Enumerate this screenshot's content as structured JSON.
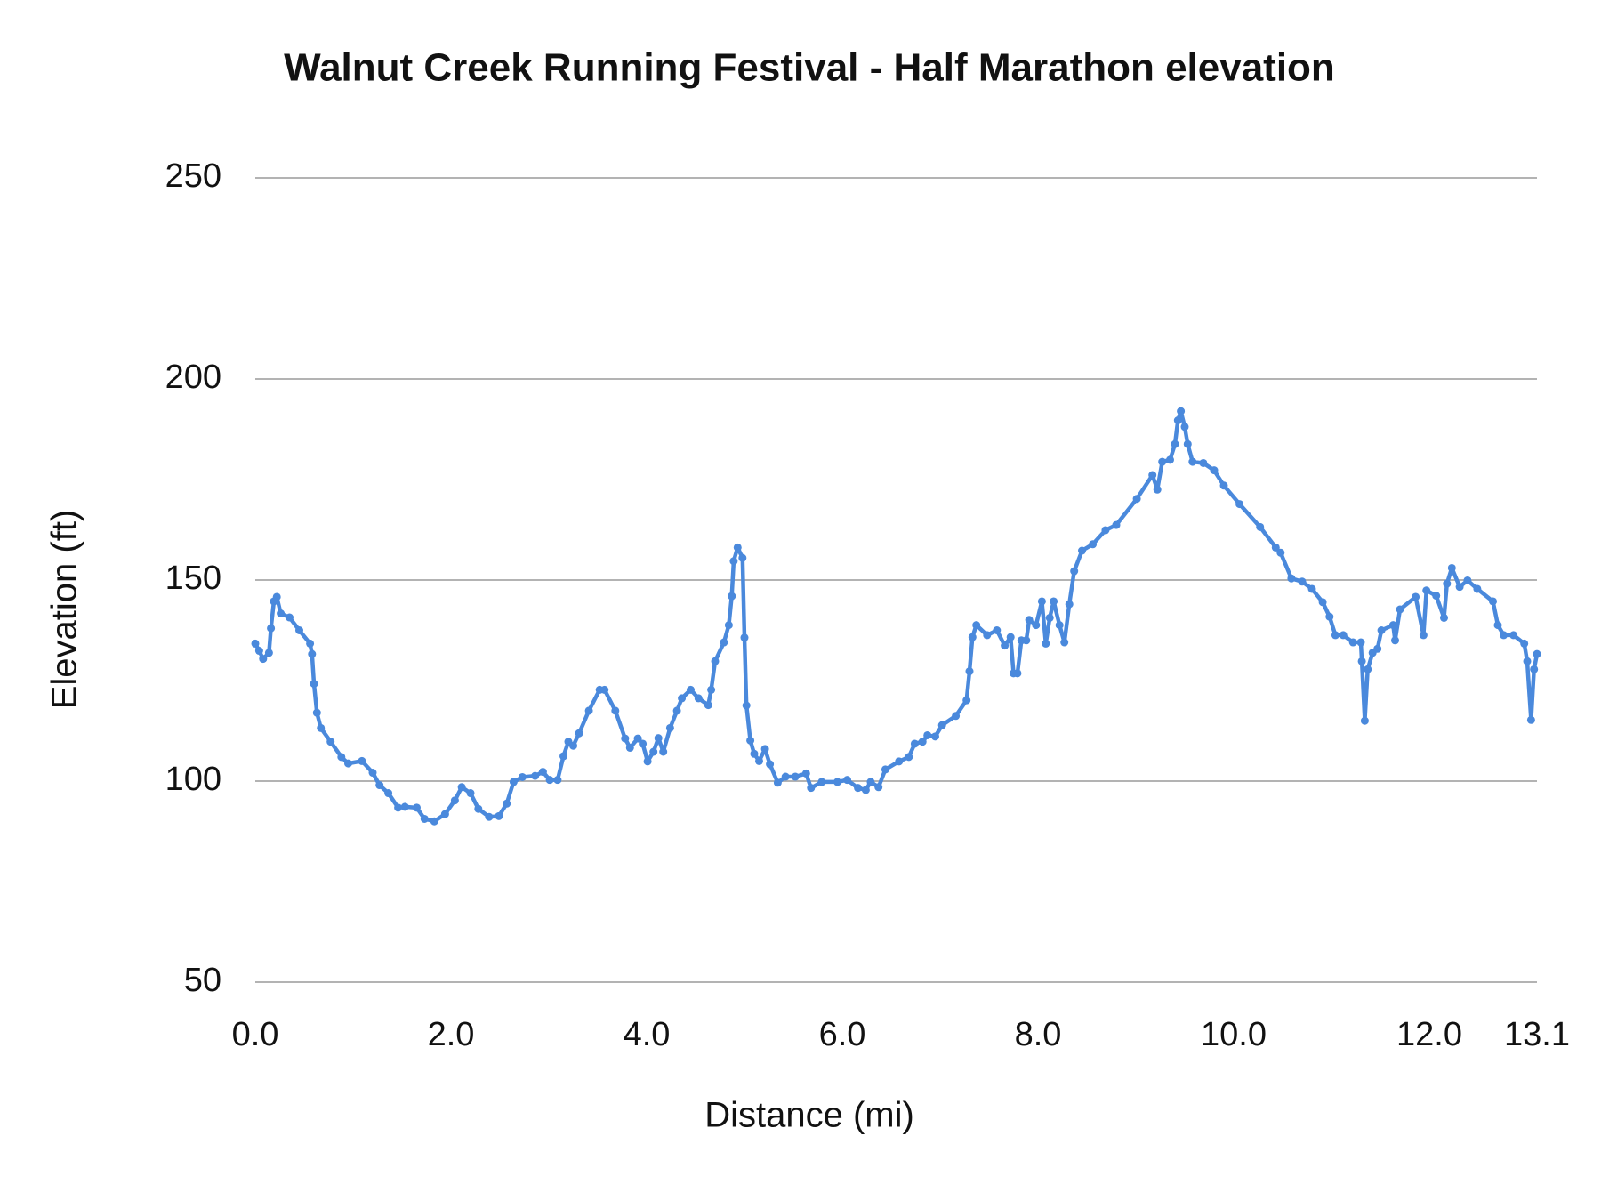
{
  "chart_data": {
    "type": "line",
    "title": "Walnut Creek Running Festival - Half Marathon elevation",
    "x_label": "Distance (mi)",
    "y_label": "Elevation (ft)",
    "xlim": [
      0,
      13.1
    ],
    "ylim": [
      50,
      250
    ],
    "xticks": [
      {
        "value": 0,
        "label": "0.0"
      },
      {
        "value": 2,
        "label": "2.0"
      },
      {
        "value": 4,
        "label": "4.0"
      },
      {
        "value": 6,
        "label": "6.0"
      },
      {
        "value": 8,
        "label": "8.0"
      },
      {
        "value": 10,
        "label": "10.0"
      },
      {
        "value": 12,
        "label": "12.0"
      },
      13.1
    ],
    "yticks": [
      50,
      100,
      150,
      200,
      250
    ],
    "grid": true,
    "markers": true,
    "x": [
      0,
      0.04,
      0.08,
      0.14,
      0.16,
      0.19,
      0.22,
      0.26,
      0.35,
      0.45,
      0.56,
      0.58,
      0.6,
      0.63,
      0.67,
      0.77,
      0.88,
      0.95,
      1.09,
      1.2,
      1.27,
      1.36,
      1.46,
      1.53,
      1.65,
      1.73,
      1.83,
      1.94,
      2.04,
      2.11,
      2.2,
      2.28,
      2.39,
      2.49,
      2.57,
      2.64,
      2.73,
      2.86,
      2.94,
      3.01,
      3.09,
      3.15,
      3.2,
      3.25,
      3.31,
      3.41,
      3.52,
      3.57,
      3.68,
      3.78,
      3.83,
      3.91,
      3.96,
      4.01,
      4.07,
      4.12,
      4.17,
      4.24,
      4.31,
      4.36,
      4.45,
      4.53,
      4.63,
      4.66,
      4.7,
      4.79,
      4.84,
      4.87,
      4.89,
      4.93,
      4.98,
      5,
      5.02,
      5.06,
      5.1,
      5.15,
      5.21,
      5.26,
      5.34,
      5.42,
      5.52,
      5.63,
      5.68,
      5.79,
      5.95,
      6.05,
      6.16,
      6.24,
      6.29,
      6.37,
      6.44,
      6.58,
      6.68,
      6.74,
      6.82,
      6.87,
      6.95,
      7.02,
      7.16,
      7.27,
      7.3,
      7.33,
      7.37,
      7.48,
      7.58,
      7.66,
      7.72,
      7.75,
      7.79,
      7.83,
      7.88,
      7.91,
      7.98,
      8.04,
      8.08,
      8.12,
      8.16,
      8.22,
      8.27,
      8.32,
      8.37,
      8.45,
      8.56,
      8.69,
      8.8,
      9.01,
      9.17,
      9.22,
      9.27,
      9.35,
      9.4,
      9.43,
      9.46,
      9.5,
      9.53,
      9.58,
      9.69,
      9.8,
      9.9,
      10.06,
      10.27,
      10.43,
      10.48,
      10.59,
      10.7,
      10.8,
      10.91,
      10.98,
      11.04,
      11.12,
      11.22,
      11.3,
      11.31,
      11.34,
      11.37,
      11.42,
      11.47,
      11.51,
      11.63,
      11.65,
      11.7,
      11.86,
      11.94,
      11.97,
      12.07,
      12.15,
      12.18,
      12.23,
      12.31,
      12.39,
      12.49,
      12.65,
      12.7,
      12.76,
      12.86,
      12.97,
      13,
      13.04,
      13.07,
      13.1
    ],
    "series": [
      {
        "color": "#4a89dc",
        "values": [
          134.2,
          132.4,
          130.4,
          131.9,
          138,
          144.7,
          145.8,
          141.7,
          140.7,
          137.5,
          134.2,
          131.6,
          124.2,
          117,
          113.2,
          109.8,
          106,
          104.4,
          105,
          102.1,
          99,
          97,
          93.4,
          93.6,
          93.4,
          90.6,
          90,
          91.8,
          95.2,
          98.5,
          97,
          93.1,
          91.1,
          91.3,
          94.4,
          99.8,
          101,
          101.3,
          102.3,
          100.3,
          100.3,
          106.2,
          109.8,
          108.8,
          111.9,
          117.5,
          122.7,
          122.7,
          117.5,
          110.6,
          108.3,
          110.6,
          109.3,
          104.9,
          107.3,
          110.7,
          107.3,
          113.2,
          117.5,
          120.6,
          122.7,
          120.6,
          118.9,
          122.7,
          129.8,
          134.5,
          138.8,
          146,
          154.7,
          158.1,
          155.5,
          135.7,
          118.8,
          110.1,
          106.8,
          105,
          108,
          104.2,
          99.6,
          101.1,
          101.1,
          101.9,
          98.3,
          99.8,
          99.8,
          100.3,
          98.3,
          97.8,
          99.8,
          98.5,
          102.9,
          104.9,
          106,
          109.3,
          109.8,
          111.4,
          111.1,
          113.9,
          116.2,
          120.1,
          127.3,
          135.8,
          138.8,
          136.3,
          137.5,
          133.7,
          135.8,
          126.8,
          126.8,
          135,
          135,
          140.1,
          138.8,
          144.7,
          134.2,
          140.6,
          144.7,
          138.8,
          134.5,
          144,
          152.2,
          157.3,
          158.9,
          162.4,
          163.7,
          170.2,
          176.1,
          172.5,
          179.4,
          179.9,
          183.8,
          189.7,
          192,
          188.1,
          183.8,
          179.4,
          179.1,
          177.3,
          173.5,
          168.9,
          163.2,
          158.1,
          156.8,
          150.4,
          149.6,
          147.8,
          144.5,
          140.9,
          136.3,
          136.3,
          134.5,
          134.5,
          129.8,
          115,
          127.8,
          131.9,
          132.9,
          137.5,
          138.8,
          135,
          142.7,
          145.8,
          136.3,
          147.4,
          146.1,
          140.6,
          149.1,
          153,
          148.3,
          149.9,
          147.8,
          144.7,
          138.8,
          136.3,
          136.3,
          134.2,
          129.8,
          115.2,
          127.8,
          131.6
        ]
      }
    ]
  }
}
